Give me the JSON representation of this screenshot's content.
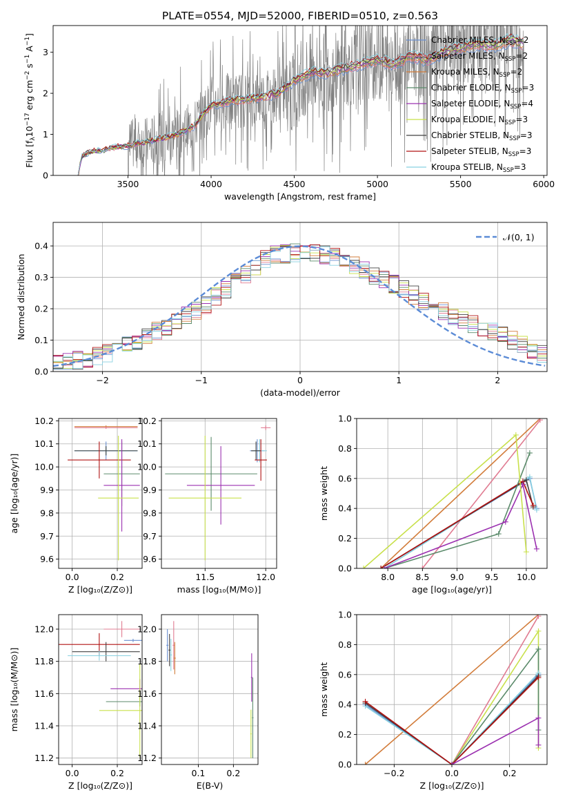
{
  "figure_title": "PLATE=0554, MJD=52000, FIBERID=0510, z=0.563",
  "legend_main": [
    {
      "label": "Chabrier MILES, N",
      "sub": "SSP",
      "suffix": "=2",
      "color": "#6a8fd0"
    },
    {
      "label": "Salpeter MILES, N",
      "sub": "SSP",
      "suffix": "=2",
      "color": "#e07b91"
    },
    {
      "label": "Kroupa MILES, N",
      "sub": "SSP",
      "suffix": "=2",
      "color": "#d27c3a"
    },
    {
      "label": "Chabrier ELODIE, N",
      "sub": "SSP",
      "suffix": "=3",
      "color": "#5a8a6a"
    },
    {
      "label": "Salpeter ELODIE, N",
      "sub": "SSP",
      "suffix": "=4",
      "color": "#9b30b0"
    },
    {
      "label": "Kroupa ELODIE, N",
      "sub": "SSP",
      "suffix": "=3",
      "color": "#c8e04a"
    },
    {
      "label": "Chabrier STELIB, N",
      "sub": "SSP",
      "suffix": "=3",
      "color": "#404040"
    },
    {
      "label": "Salpeter STELIB, N",
      "sub": "SSP",
      "suffix": "=3",
      "color": "#b01010"
    },
    {
      "label": "Kroupa STELIB, N",
      "sub": "SSP",
      "suffix": "=3",
      "color": "#88d0e0"
    }
  ],
  "chart_data": [
    {
      "id": "spectrum",
      "type": "line",
      "title": "PLATE=0554, MJD=52000, FIBERID=0510, z=0.563",
      "xlabel": "wavelength [Angstrom, rest frame]",
      "ylabel_parts": [
        "Flux [f",
        "λ",
        "10",
        "−17",
        " erg cm",
        "−2",
        " s",
        "−1",
        " A",
        "−1",
        "]"
      ],
      "xlim": [
        3050,
        6020
      ],
      "ylim": [
        0,
        3.65
      ],
      "xticks": [
        3500,
        4000,
        4500,
        5000,
        5500,
        6000
      ],
      "yticks": [
        0,
        1,
        2,
        3
      ],
      "data_color": "#808080",
      "model_points": [
        [
          3200,
          0.0
        ],
        [
          3220,
          0.45
        ],
        [
          3260,
          0.55
        ],
        [
          3300,
          0.6
        ],
        [
          3350,
          0.6
        ],
        [
          3400,
          0.68
        ],
        [
          3450,
          0.7
        ],
        [
          3500,
          0.72
        ],
        [
          3550,
          0.78
        ],
        [
          3600,
          0.8
        ],
        [
          3650,
          0.85
        ],
        [
          3700,
          0.9
        ],
        [
          3750,
          0.95
        ],
        [
          3800,
          1.0
        ],
        [
          3850,
          1.1
        ],
        [
          3900,
          1.2
        ],
        [
          3950,
          1.5
        ],
        [
          4000,
          1.7
        ],
        [
          4100,
          1.8
        ],
        [
          4200,
          1.85
        ],
        [
          4300,
          1.9
        ],
        [
          4400,
          2.0
        ],
        [
          4500,
          2.3
        ],
        [
          4600,
          2.5
        ],
        [
          4700,
          2.5
        ],
        [
          4800,
          2.6
        ],
        [
          4900,
          2.7
        ],
        [
          5000,
          2.8
        ],
        [
          5100,
          2.7
        ],
        [
          5200,
          2.9
        ],
        [
          5300,
          2.8
        ],
        [
          5400,
          3.0
        ],
        [
          5500,
          3.1
        ],
        [
          5600,
          3.2
        ],
        [
          5700,
          3.15
        ],
        [
          5800,
          3.3
        ],
        [
          5880,
          3.2
        ]
      ]
    },
    {
      "id": "residuals",
      "type": "line",
      "xlabel": "(data-model)/error",
      "ylabel": "Normed distribution",
      "xlim": [
        -2.5,
        2.5
      ],
      "ylim": [
        0,
        0.475
      ],
      "xticks": [
        -2,
        -1,
        0,
        1,
        2
      ],
      "yticks": [
        0.0,
        0.1,
        0.2,
        0.3,
        0.4
      ],
      "legend": "𝒩(0, 1)",
      "normal_color": "#5b8bd6",
      "hist_profile": [
        [
          -2.5,
          0.02
        ],
        [
          -2.0,
          0.05
        ],
        [
          -1.5,
          0.12
        ],
        [
          -1.0,
          0.2
        ],
        [
          -0.6,
          0.3
        ],
        [
          -0.3,
          0.37
        ],
        [
          0.0,
          0.38
        ],
        [
          0.3,
          0.37
        ],
        [
          0.6,
          0.33
        ],
        [
          1.0,
          0.27
        ],
        [
          1.5,
          0.18
        ],
        [
          2.0,
          0.12
        ],
        [
          2.5,
          0.05
        ]
      ]
    },
    {
      "id": "age-vs-Z",
      "type": "scatter",
      "xlabel": "Z [log₁₀(Z/Z⊙)]",
      "ylabel": "age  [log₁₀(age/yr)]",
      "xlim": [
        -0.06,
        0.31
      ],
      "ylim": [
        9.56,
        10.21
      ],
      "xticks": [
        0.0,
        0.2
      ],
      "yticks": [
        9.6,
        9.7,
        9.8,
        9.9,
        10.0,
        10.1,
        10.2
      ],
      "points": [
        {
          "x": 0.15,
          "y": 10.175,
          "x_err": 0.14,
          "y_err": 0.005,
          "color": "#d27c3a"
        },
        {
          "x": 0.15,
          "y": 10.17,
          "x_err": 0.14,
          "y_err": 0.005,
          "color": "#e07b91"
        },
        {
          "x": 0.15,
          "y": 10.07,
          "x_err": 0.14,
          "y_err": 0.04,
          "color": "#6a8fd0"
        },
        {
          "x": 0.15,
          "y": 10.07,
          "x_err": 0.14,
          "y_err": 0.02,
          "color": "#88d0e0"
        },
        {
          "x": 0.15,
          "y": 10.07,
          "x_err": 0.14,
          "y_err": 0.02,
          "color": "#404040"
        },
        {
          "x": 0.12,
          "y": 10.03,
          "x_err": 0.14,
          "y_err": 0.08,
          "color": "#b01010"
        },
        {
          "x": 0.22,
          "y": 9.97,
          "x_err": 0.08,
          "y_err": 0.14,
          "color": "#5a8a6a"
        },
        {
          "x": 0.22,
          "y": 9.92,
          "x_err": 0.08,
          "y_err": 0.2,
          "color": "#9b30b0"
        },
        {
          "x": 0.205,
          "y": 9.865,
          "x_err": 0.09,
          "y_err": 0.27,
          "color": "#c8e04a"
        }
      ]
    },
    {
      "id": "age-vs-mass",
      "type": "scatter",
      "xlabel": "mass [log₁₀(M/M⊙)]",
      "ylabel": "",
      "xlim": [
        11.14,
        12.09
      ],
      "ylim": [
        9.56,
        10.21
      ],
      "xticks": [
        11.5,
        12.0
      ],
      "yticks": [
        9.6,
        9.7,
        9.8,
        9.9,
        10.0,
        10.1,
        10.2
      ],
      "points": [
        {
          "x": 11.93,
          "y": 10.07,
          "x_err": 0.06,
          "y_err": 0.05,
          "color": "#6a8fd0"
        },
        {
          "x": 11.95,
          "y": 10.07,
          "x_err": 0.06,
          "y_err": 0.05,
          "color": "#88d0e0"
        },
        {
          "x": 11.92,
          "y": 10.07,
          "x_err": 0.04,
          "y_err": 0.04,
          "color": "#404040"
        },
        {
          "x": 11.96,
          "y": 10.03,
          "x_err": 0.05,
          "y_err": 0.09,
          "color": "#b01010"
        },
        {
          "x": 12.0,
          "y": 10.17,
          "x_err": 0.04,
          "y_err": 0.01,
          "color": "#e07b91"
        },
        {
          "x": 11.55,
          "y": 9.97,
          "x_err": 0.38,
          "y_err": 0.16,
          "color": "#5a8a6a"
        },
        {
          "x": 11.63,
          "y": 9.92,
          "x_err": 0.28,
          "y_err": 0.17,
          "color": "#9b30b0"
        },
        {
          "x": 11.5,
          "y": 9.865,
          "x_err": 0.3,
          "y_err": 0.27,
          "color": "#c8e04a"
        }
      ]
    },
    {
      "id": "weight-vs-age",
      "type": "line",
      "xlabel": "age  [log₁₀(age/yr)]",
      "ylabel": "mass weight",
      "xlim": [
        7.55,
        10.3
      ],
      "ylim": [
        0,
        1
      ],
      "xticks": [
        8.0,
        8.5,
        9.0,
        9.5,
        10.0
      ],
      "yticks": [
        0.0,
        0.2,
        0.4,
        0.6,
        0.8,
        1.0
      ],
      "series": [
        {
          "color": "#d27c3a",
          "points": [
            [
              7.9,
              0.0
            ],
            [
              10.2,
              1.0
            ]
          ]
        },
        {
          "color": "#e07b91",
          "points": [
            [
              8.5,
              0.0
            ],
            [
              10.2,
              0.99
            ]
          ]
        },
        {
          "color": "#6a8fd0",
          "points": [
            [
              7.9,
              0.0
            ],
            [
              10.05,
              0.6
            ],
            [
              10.15,
              0.4
            ]
          ]
        },
        {
          "color": "#88d0e0",
          "points": [
            [
              7.95,
              0.0
            ],
            [
              10.05,
              0.61
            ],
            [
              10.15,
              0.39
            ]
          ]
        },
        {
          "color": "#404040",
          "points": [
            [
              7.9,
              0.0
            ],
            [
              10.0,
              0.59
            ],
            [
              10.1,
              0.41
            ]
          ]
        },
        {
          "color": "#b01010",
          "points": [
            [
              7.9,
              0.0
            ],
            [
              9.95,
              0.58
            ],
            [
              10.1,
              0.42
            ]
          ]
        },
        {
          "color": "#5a8a6a",
          "points": [
            [
              7.95,
              0.0
            ],
            [
              9.6,
              0.23
            ],
            [
              10.05,
              0.77
            ]
          ]
        },
        {
          "color": "#9b30b0",
          "points": [
            [
              7.95,
              0.0
            ],
            [
              9.7,
              0.31
            ],
            [
              9.95,
              0.56
            ],
            [
              10.15,
              0.13
            ]
          ]
        },
        {
          "color": "#c8e04a",
          "points": [
            [
              7.65,
              0.0
            ],
            [
              9.85,
              0.89
            ],
            [
              10.0,
              0.11
            ]
          ]
        }
      ]
    },
    {
      "id": "mass-vs-Z",
      "type": "scatter",
      "xlabel": "Z [log₁₀(Z/Z⊙)]",
      "ylabel": "mass [log₁₀(M/M⊙)]",
      "xlim": [
        -0.06,
        0.31
      ],
      "ylim": [
        11.16,
        12.09
      ],
      "xticks": [
        0.0,
        0.2
      ],
      "yticks": [
        11.2,
        11.4,
        11.6,
        11.8,
        12.0
      ],
      "points": [
        {
          "x": 0.22,
          "y": 12.0,
          "x_err": 0.08,
          "y_err": 0.05,
          "color": "#e07b91"
        },
        {
          "x": 0.27,
          "y": 11.93,
          "x_err": 0.04,
          "y_err": 0.01,
          "color": "#6a8fd0"
        },
        {
          "x": 0.12,
          "y": 11.905,
          "x_err": 0.18,
          "y_err": 0.07,
          "color": "#b01010"
        },
        {
          "x": 0.15,
          "y": 11.86,
          "x_err": 0.15,
          "y_err": 0.06,
          "color": "#404040"
        },
        {
          "x": 0.12,
          "y": 11.835,
          "x_err": 0.14,
          "y_err": 0.03,
          "color": "#88d0e0"
        },
        {
          "x": 0.3,
          "y": 11.63,
          "x_err": 0.13,
          "y_err": 0.06,
          "color": "#9b30b0"
        },
        {
          "x": 0.3,
          "y": 11.55,
          "x_err": 0.15,
          "y_err": 0.03,
          "color": "#5a8a6a"
        },
        {
          "x": 0.3,
          "y": 11.495,
          "x_err": 0.18,
          "y_err": 0.29,
          "color": "#c8e04a"
        }
      ]
    },
    {
      "id": "mass-vs-ebv",
      "type": "scatter",
      "xlabel": "E(B-V)",
      "ylabel": "",
      "xlim": [
        -0.005,
        0.27
      ],
      "ylim": [
        11.16,
        12.09
      ],
      "xticks": [
        0.1,
        0.2
      ],
      "yticks": [
        11.2,
        11.4,
        11.6,
        11.8,
        12.0
      ],
      "points": [
        {
          "x": 0.012,
          "y": 11.9,
          "x_err": 0.003,
          "y_err": 0.1,
          "color": "#6a8fd0"
        },
        {
          "x": 0.018,
          "y": 11.87,
          "x_err": 0.003,
          "y_err": 0.1,
          "color": "#404040"
        },
        {
          "x": 0.022,
          "y": 11.84,
          "x_err": 0.003,
          "y_err": 0.1,
          "color": "#88d0e0"
        },
        {
          "x": 0.03,
          "y": 11.9,
          "x_err": 0.003,
          "y_err": 0.15,
          "color": "#e07b91"
        },
        {
          "x": 0.033,
          "y": 11.82,
          "x_err": 0.003,
          "y_err": 0.1,
          "color": "#d27c3a"
        },
        {
          "x": 0.252,
          "y": 11.7,
          "x_err": 0.002,
          "y_err": 0.15,
          "color": "#9b30b0"
        },
        {
          "x": 0.255,
          "y": 11.45,
          "x_err": 0.002,
          "y_err": 0.25,
          "color": "#5a8a6a"
        },
        {
          "x": 0.25,
          "y": 11.35,
          "x_err": 0.002,
          "y_err": 0.15,
          "color": "#c8e04a"
        }
      ]
    },
    {
      "id": "weight-vs-Z",
      "type": "line",
      "xlabel": "Z [log₁₀(Z/Z⊙)]",
      "ylabel": "mass weight",
      "xlim": [
        -0.33,
        0.33
      ],
      "ylim": [
        0,
        1
      ],
      "xticks": [
        -0.2,
        0.0,
        0.2
      ],
      "yticks": [
        0.0,
        0.2,
        0.4,
        0.6,
        0.8,
        1.0
      ],
      "series": [
        {
          "color": "#d27c3a",
          "points": [
            [
              -0.3,
              0.0
            ],
            [
              0.3,
              1.0
            ]
          ]
        },
        {
          "color": "#e07b91",
          "points": [
            [
              0.0,
              0.0
            ],
            [
              0.3,
              0.99
            ]
          ]
        },
        {
          "color": "#c8e04a",
          "points": [
            [
              0.0,
              0.0
            ],
            [
              0.3,
              0.89
            ],
            [
              0.3,
              0.11
            ]
          ]
        },
        {
          "color": "#5a8a6a",
          "points": [
            [
              0.0,
              0.0
            ],
            [
              0.3,
              0.77
            ],
            [
              0.3,
              0.23
            ]
          ]
        },
        {
          "color": "#6a8fd0",
          "points": [
            [
              -0.3,
              0.4
            ],
            [
              0.0,
              0.0
            ],
            [
              0.3,
              0.6
            ]
          ]
        },
        {
          "color": "#88d0e0",
          "points": [
            [
              -0.3,
              0.39
            ],
            [
              0.0,
              0.0
            ],
            [
              0.3,
              0.61
            ]
          ]
        },
        {
          "color": "#404040",
          "points": [
            [
              -0.3,
              0.41
            ],
            [
              0.0,
              0.0
            ],
            [
              0.3,
              0.59
            ]
          ]
        },
        {
          "color": "#b01010",
          "points": [
            [
              -0.3,
              0.42
            ],
            [
              0.0,
              0.0
            ],
            [
              0.3,
              0.58
            ]
          ]
        },
        {
          "color": "#9b30b0",
          "points": [
            [
              0.0,
              0.0
            ],
            [
              0.3,
              0.31
            ],
            [
              0.3,
              0.13
            ]
          ]
        }
      ]
    }
  ]
}
